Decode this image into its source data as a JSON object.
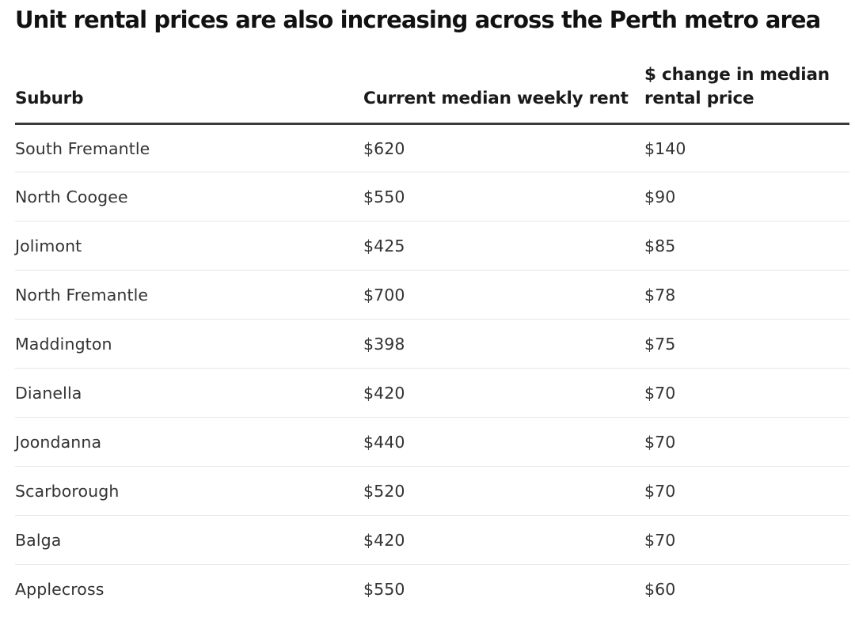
{
  "title": "Unit rental prices are also increasing across the Perth metro area",
  "table": {
    "headers": [
      "Suburb",
      "Current median weekly rent",
      "$ change in median rental price"
    ],
    "rows": [
      [
        "South Fremantle",
        "$620",
        "$140"
      ],
      [
        "North Coogee",
        "$550",
        "$90"
      ],
      [
        "Jolimont",
        "$425",
        "$85"
      ],
      [
        "North Fremantle",
        "$700",
        "$78"
      ],
      [
        "Maddington",
        "$398",
        "$75"
      ],
      [
        "Dianella",
        "$420",
        "$70"
      ],
      [
        "Joondanna",
        "$440",
        "$70"
      ],
      [
        "Scarborough",
        "$520",
        "$70"
      ],
      [
        "Balga",
        "$420",
        "$70"
      ],
      [
        "Applecross",
        "$550",
        "$60"
      ]
    ]
  }
}
